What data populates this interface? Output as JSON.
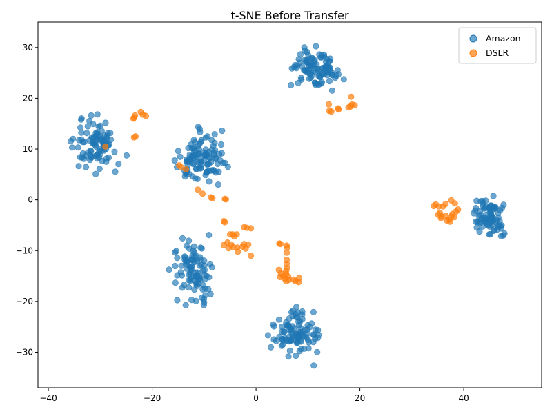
{
  "chart_data": {
    "type": "scatter",
    "title": "t-SNE Before Transfer",
    "xlabel": "",
    "ylabel": "",
    "xlim": [
      -42,
      55
    ],
    "ylim": [
      -37,
      35
    ],
    "x_ticks": [
      -40,
      -20,
      0,
      20,
      40
    ],
    "y_ticks": [
      -30,
      -20,
      -10,
      0,
      10,
      20,
      30
    ],
    "grid": false,
    "legend_position": "top-right",
    "series": [
      {
        "name": "Amazon",
        "color": "#1f77b4",
        "alpha": 0.65,
        "clusters": [
          {
            "center": [
              -31,
              11
            ],
            "spread": [
              4,
              4.2
            ],
            "count": 95
          },
          {
            "center": [
              -10.5,
              8
            ],
            "spread": [
              4.5,
              4.2
            ],
            "count": 110
          },
          {
            "center": [
              11,
              26
            ],
            "spread": [
              4.2,
              3.2
            ],
            "count": 100
          },
          {
            "center": [
              45,
              -3
            ],
            "spread": [
              2.6,
              3.2
            ],
            "count": 85
          },
          {
            "center": [
              -12,
              -14
            ],
            "spread": [
              3.8,
              5
            ],
            "count": 95
          },
          {
            "center": [
              8,
              -26
            ],
            "spread": [
              3.8,
              3.8
            ],
            "count": 100
          }
        ]
      },
      {
        "name": "DSLR",
        "color": "#ff7f0e",
        "alpha": 0.7,
        "points": [
          [
            -23.5,
            16.2
          ],
          [
            -23.3,
            16.6
          ],
          [
            -22.2,
            17.3
          ],
          [
            -21.8,
            16.8
          ],
          [
            -21.2,
            16.5
          ],
          [
            -23.6,
            16
          ],
          [
            -23.5,
            12.3
          ],
          [
            -23.2,
            12.5
          ],
          [
            -29,
            10.5
          ],
          [
            -14.8,
            6.8
          ],
          [
            -14.4,
            6.4
          ],
          [
            -13.5,
            6
          ],
          [
            -11.2,
            2
          ],
          [
            -10.3,
            1.2
          ],
          [
            -8.7,
            0.5
          ],
          [
            -8.4,
            0.3
          ],
          [
            -6,
            0.2
          ],
          [
            -5.8,
            0.1
          ],
          [
            -6.2,
            -4.2
          ],
          [
            -6,
            -4.4
          ],
          [
            -5,
            -6.8
          ],
          [
            -4.5,
            -6.8
          ],
          [
            -3.7,
            -6.8
          ],
          [
            -4.2,
            -7.2
          ],
          [
            -2.3,
            -5.4
          ],
          [
            -1.8,
            -5.5
          ],
          [
            -1,
            -5.6
          ],
          [
            -6.2,
            -8.9
          ],
          [
            -5.5,
            -8.4
          ],
          [
            -5.3,
            -9.5
          ],
          [
            -4.8,
            -8.8
          ],
          [
            -4.4,
            -9.3
          ],
          [
            -3.6,
            -9.4
          ],
          [
            -3.5,
            -10.2
          ],
          [
            -2.6,
            -9.2
          ],
          [
            -2.3,
            -8.7
          ],
          [
            -2,
            -9.6
          ],
          [
            -1.5,
            -8.8
          ],
          [
            -1,
            -11
          ],
          [
            4.5,
            -8.6
          ],
          [
            4.7,
            -8.7
          ],
          [
            5.9,
            -9
          ],
          [
            6,
            -9.4
          ],
          [
            5.9,
            -10.4
          ],
          [
            5.9,
            -11.8
          ],
          [
            5.9,
            -12.6
          ],
          [
            6,
            -13.4
          ],
          [
            5.8,
            -14
          ],
          [
            4.4,
            -13.8
          ],
          [
            4.8,
            -14.5
          ],
          [
            4.6,
            -15.2
          ],
          [
            5.2,
            -15
          ],
          [
            5.5,
            -15.5
          ],
          [
            5.8,
            -14.6
          ],
          [
            6.2,
            -15.1
          ],
          [
            6.3,
            -15.8
          ],
          [
            7.2,
            -15.7
          ],
          [
            7.6,
            -16
          ],
          [
            8.2,
            -16.2
          ],
          [
            8.3,
            -15.4
          ],
          [
            5.8,
            -16
          ],
          [
            14,
            18.8
          ],
          [
            14.1,
            17.5
          ],
          [
            14.5,
            17.4
          ],
          [
            15.8,
            18
          ],
          [
            15.9,
            17.8
          ],
          [
            17.8,
            18.2
          ],
          [
            18.2,
            18.4
          ],
          [
            18.5,
            18.8
          ],
          [
            18.3,
            20.3
          ],
          [
            19,
            18.6
          ],
          [
            34.2,
            -1.2
          ],
          [
            34.6,
            -0.9
          ],
          [
            35.2,
            -1.3
          ],
          [
            36,
            -1.3
          ],
          [
            36.5,
            -0.8
          ],
          [
            37.6,
            -0.1
          ],
          [
            38.3,
            -0.7
          ],
          [
            38.9,
            -1.9
          ],
          [
            38.5,
            -2.3
          ],
          [
            37.8,
            -2.8
          ],
          [
            37.6,
            -3.3
          ],
          [
            38.2,
            -3.4
          ],
          [
            36.5,
            -3.1
          ],
          [
            35.4,
            -2.6
          ],
          [
            35.1,
            -2.9
          ],
          [
            35.6,
            -3.6
          ],
          [
            36.8,
            -4.1
          ],
          [
            37.4,
            -4.3
          ],
          [
            37.2,
            -3.9
          ],
          [
            35.7,
            -3.3
          ]
        ]
      }
    ]
  }
}
